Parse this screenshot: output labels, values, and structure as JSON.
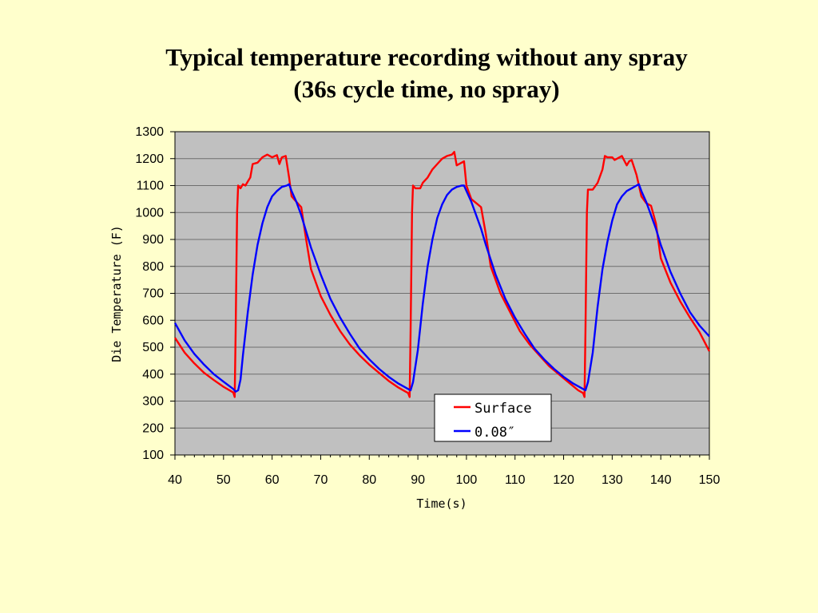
{
  "slide": {
    "title_line1": "Typical temperature recording without any spray",
    "title_line2": "(36s cycle time, no spray)"
  },
  "chart_data": {
    "type": "line",
    "title": "",
    "xlabel": "Time(s)",
    "ylabel": "Die Temperature (F)",
    "xlim": [
      40,
      150
    ],
    "ylim": [
      100,
      1300
    ],
    "xticks": [
      40,
      50,
      60,
      70,
      80,
      90,
      100,
      110,
      120,
      130,
      140,
      150
    ],
    "yticks": [
      100,
      200,
      300,
      400,
      500,
      600,
      700,
      800,
      900,
      1000,
      1100,
      1200,
      1300
    ],
    "grid": "horizontal",
    "plot_background": "#c0c0c0",
    "legend": {
      "placement": "bottom-center",
      "entries": [
        "Surface",
        "0.08″"
      ]
    },
    "series": [
      {
        "name": "Surface",
        "color": "#ff0000",
        "points": [
          [
            40,
            535
          ],
          [
            42,
            480
          ],
          [
            44,
            440
          ],
          [
            46,
            405
          ],
          [
            48,
            378
          ],
          [
            50,
            353
          ],
          [
            52,
            332
          ],
          [
            52.3,
            315
          ],
          [
            52.5,
            560
          ],
          [
            52.8,
            1000
          ],
          [
            53,
            1100
          ],
          [
            53.5,
            1090
          ],
          [
            54,
            1105
          ],
          [
            54.5,
            1100
          ],
          [
            55,
            1115
          ],
          [
            55.5,
            1130
          ],
          [
            56,
            1180
          ],
          [
            57,
            1185
          ],
          [
            58,
            1205
          ],
          [
            59,
            1215
          ],
          [
            60,
            1205
          ],
          [
            61,
            1213
          ],
          [
            61.5,
            1180
          ],
          [
            62,
            1205
          ],
          [
            62.8,
            1210
          ],
          [
            63.5,
            1130
          ],
          [
            64,
            1060
          ],
          [
            65,
            1040
          ],
          [
            66,
            1020
          ],
          [
            67,
            900
          ],
          [
            68,
            790
          ],
          [
            70,
            690
          ],
          [
            72,
            620
          ],
          [
            74,
            560
          ],
          [
            76,
            510
          ],
          [
            78,
            470
          ],
          [
            80,
            435
          ],
          [
            82,
            405
          ],
          [
            84,
            375
          ],
          [
            86,
            350
          ],
          [
            88,
            330
          ],
          [
            88.3,
            315
          ],
          [
            88.5,
            560
          ],
          [
            88.8,
            1000
          ],
          [
            89,
            1100
          ],
          [
            89.5,
            1090
          ],
          [
            90.5,
            1090
          ],
          [
            91,
            1110
          ],
          [
            92,
            1130
          ],
          [
            93,
            1160
          ],
          [
            94,
            1180
          ],
          [
            95,
            1200
          ],
          [
            96,
            1210
          ],
          [
            97,
            1215
          ],
          [
            97.5,
            1225
          ],
          [
            98,
            1175
          ],
          [
            99,
            1185
          ],
          [
            99.5,
            1190
          ],
          [
            100,
            1100
          ],
          [
            101,
            1050
          ],
          [
            102,
            1035
          ],
          [
            103,
            1020
          ],
          [
            104,
            920
          ],
          [
            105,
            800
          ],
          [
            107,
            700
          ],
          [
            109,
            630
          ],
          [
            111,
            560
          ],
          [
            113,
            510
          ],
          [
            115,
            470
          ],
          [
            117,
            430
          ],
          [
            119,
            400
          ],
          [
            121,
            370
          ],
          [
            123,
            340
          ],
          [
            124,
            330
          ],
          [
            124.3,
            315
          ],
          [
            124.5,
            560
          ],
          [
            124.8,
            1000
          ],
          [
            125,
            1085
          ],
          [
            126,
            1085
          ],
          [
            127,
            1110
          ],
          [
            128,
            1160
          ],
          [
            128.5,
            1210
          ],
          [
            129,
            1205
          ],
          [
            130,
            1205
          ],
          [
            130.5,
            1195
          ],
          [
            131,
            1200
          ],
          [
            132,
            1210
          ],
          [
            133,
            1175
          ],
          [
            133.5,
            1190
          ],
          [
            134,
            1195
          ],
          [
            135,
            1140
          ],
          [
            136,
            1060
          ],
          [
            137,
            1035
          ],
          [
            138,
            1025
          ],
          [
            139,
            960
          ],
          [
            140,
            830
          ],
          [
            142,
            740
          ],
          [
            144,
            670
          ],
          [
            146,
            610
          ],
          [
            148,
            555
          ],
          [
            150,
            485
          ]
        ]
      },
      {
        "name": "0.08″",
        "color": "#0000ff",
        "points": [
          [
            40,
            590
          ],
          [
            42,
            525
          ],
          [
            44,
            475
          ],
          [
            46,
            435
          ],
          [
            48,
            400
          ],
          [
            50,
            372
          ],
          [
            52,
            345
          ],
          [
            52.5,
            335
          ],
          [
            53,
            340
          ],
          [
            53.5,
            380
          ],
          [
            54,
            470
          ],
          [
            55,
            630
          ],
          [
            56,
            770
          ],
          [
            57,
            880
          ],
          [
            58,
            960
          ],
          [
            59,
            1020
          ],
          [
            60,
            1060
          ],
          [
            61,
            1080
          ],
          [
            62,
            1095
          ],
          [
            63,
            1100
          ],
          [
            63.5,
            1105
          ],
          [
            64,
            1080
          ],
          [
            65,
            1040
          ],
          [
            66,
            990
          ],
          [
            67,
            930
          ],
          [
            68,
            870
          ],
          [
            70,
            770
          ],
          [
            72,
            680
          ],
          [
            74,
            610
          ],
          [
            76,
            550
          ],
          [
            78,
            495
          ],
          [
            80,
            455
          ],
          [
            82,
            420
          ],
          [
            84,
            390
          ],
          [
            86,
            365
          ],
          [
            88,
            345
          ],
          [
            88.5,
            340
          ],
          [
            89,
            370
          ],
          [
            90,
            490
          ],
          [
            91,
            660
          ],
          [
            92,
            800
          ],
          [
            93,
            900
          ],
          [
            94,
            980
          ],
          [
            95,
            1030
          ],
          [
            96,
            1065
          ],
          [
            97,
            1085
          ],
          [
            98,
            1095
          ],
          [
            99,
            1100
          ],
          [
            99.5,
            1100
          ],
          [
            100,
            1080
          ],
          [
            101,
            1040
          ],
          [
            102,
            990
          ],
          [
            103,
            940
          ],
          [
            104,
            880
          ],
          [
            106,
            770
          ],
          [
            108,
            680
          ],
          [
            110,
            610
          ],
          [
            112,
            550
          ],
          [
            114,
            495
          ],
          [
            116,
            455
          ],
          [
            118,
            420
          ],
          [
            120,
            390
          ],
          [
            122,
            365
          ],
          [
            124,
            345
          ],
          [
            124.5,
            340
          ],
          [
            125,
            370
          ],
          [
            126,
            480
          ],
          [
            127,
            650
          ],
          [
            128,
            790
          ],
          [
            129,
            890
          ],
          [
            130,
            970
          ],
          [
            131,
            1030
          ],
          [
            132,
            1060
          ],
          [
            133,
            1080
          ],
          [
            134,
            1090
          ],
          [
            135,
            1100
          ],
          [
            135.5,
            1105
          ],
          [
            136,
            1080
          ],
          [
            137,
            1040
          ],
          [
            138,
            990
          ],
          [
            139,
            940
          ],
          [
            140,
            880
          ],
          [
            142,
            780
          ],
          [
            144,
            700
          ],
          [
            146,
            630
          ],
          [
            148,
            580
          ],
          [
            150,
            540
          ]
        ]
      }
    ]
  }
}
